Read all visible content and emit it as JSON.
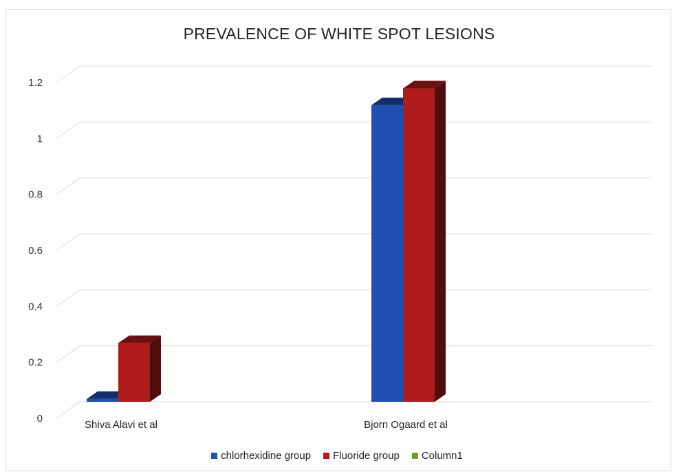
{
  "chart_data": {
    "type": "bar",
    "title": "PREVALENCE OF WHITE SPOT LESIONS",
    "categories": [
      "Shiva Alavi et al",
      "Bjorn Ogaard et al"
    ],
    "series": [
      {
        "name": "chlorhexidine group",
        "values": [
          0.01,
          1.06
        ],
        "color": "#1f4fb0"
      },
      {
        "name": "Fluoride group",
        "values": [
          0.21,
          1.12
        ],
        "color": "#b01c1c"
      },
      {
        "name": "Column1",
        "values": [
          0,
          0
        ],
        "color": "#6aa326"
      }
    ],
    "ylim": [
      0,
      1.2
    ],
    "yticks": [
      "0",
      "0.2",
      "0.4",
      "0.6",
      "0.8",
      "1",
      "1.2"
    ],
    "ytick_values": [
      0,
      0.2,
      0.4,
      0.6,
      0.8,
      1,
      1.2
    ],
    "grid": true,
    "legend": "bottom",
    "style": "3d-clustered-column"
  }
}
